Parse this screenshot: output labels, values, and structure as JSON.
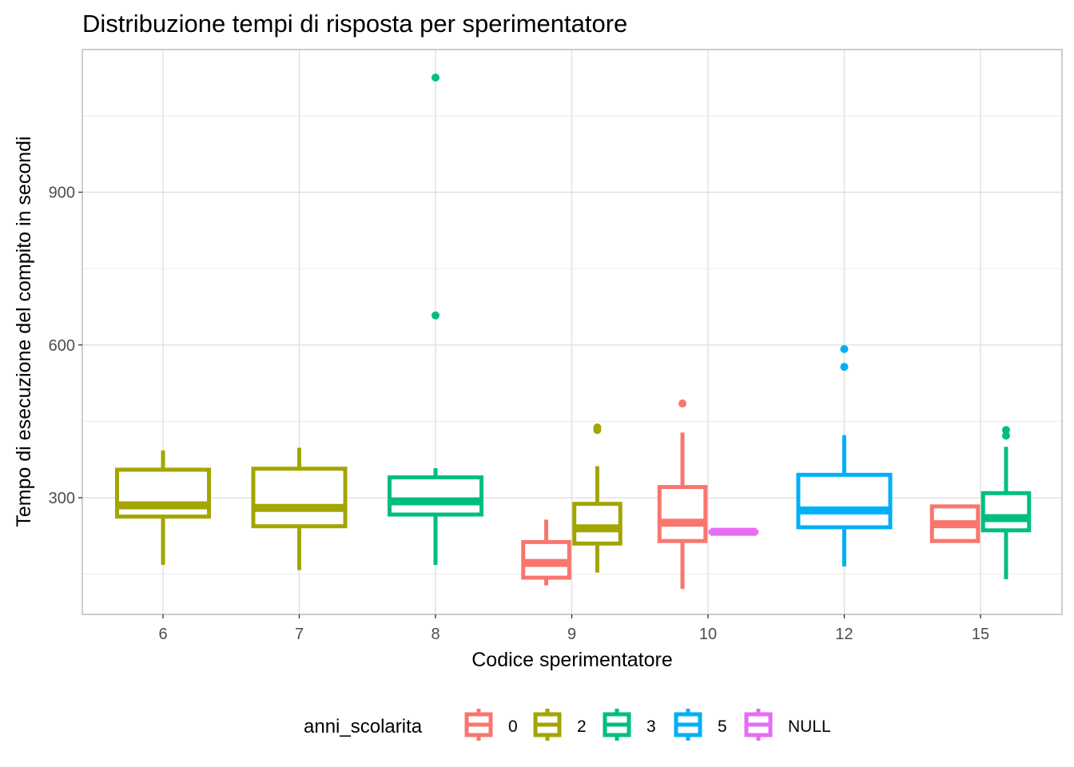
{
  "chart_data": {
    "type": "boxplot",
    "title": "Distribuzione tempi di risposta per sperimentatore",
    "xlabel": "Codice sperimentatore",
    "ylabel": "Tempo di esecuzione del compito in secondi",
    "categories": [
      "6",
      "7",
      "8",
      "9",
      "10",
      "12",
      "15"
    ],
    "yticks": [
      300,
      600,
      900
    ],
    "ylim": [
      75,
      1175
    ],
    "grid": true,
    "legend": {
      "title": "anni_scolarita",
      "position": "bottom",
      "entries": [
        {
          "label": "0",
          "color": "#F8766D"
        },
        {
          "label": "2",
          "color": "#A3A500"
        },
        {
          "label": "3",
          "color": "#00BF7D"
        },
        {
          "label": "5",
          "color": "#00B0F6"
        },
        {
          "label": "NULL",
          "color": "#E76BF3"
        }
      ]
    },
    "series": [
      {
        "name": "0",
        "boxes": [
          {
            "category": "9",
            "min": 128,
            "q1": 143,
            "median": 172,
            "q3": 213,
            "max": 257,
            "outliers": []
          },
          {
            "category": "10",
            "min": 121,
            "q1": 215,
            "median": 251,
            "q3": 321,
            "max": 428,
            "outliers": [
              485
            ]
          },
          {
            "category": "15",
            "min": 215,
            "q1": 215,
            "median": 248,
            "q3": 283,
            "max": 283,
            "outliers": []
          }
        ]
      },
      {
        "name": "2",
        "boxes": [
          {
            "category": "6",
            "min": 168,
            "q1": 263,
            "median": 285,
            "q3": 355,
            "max": 393,
            "outliers": []
          },
          {
            "category": "7",
            "min": 158,
            "q1": 244,
            "median": 280,
            "q3": 357,
            "max": 398,
            "outliers": []
          },
          {
            "category": "9",
            "min": 153,
            "q1": 210,
            "median": 240,
            "q3": 288,
            "max": 362,
            "outliers": [
              433,
              438
            ]
          }
        ]
      },
      {
        "name": "3",
        "boxes": [
          {
            "category": "8",
            "min": 168,
            "q1": 267,
            "median": 293,
            "q3": 340,
            "max": 358,
            "outliers": [
              658,
              1125
            ]
          },
          {
            "category": "15",
            "min": 140,
            "q1": 236,
            "median": 260,
            "q3": 309,
            "max": 400,
            "outliers": [
              422,
              433
            ]
          }
        ]
      },
      {
        "name": "5",
        "boxes": [
          {
            "category": "12",
            "min": 165,
            "q1": 242,
            "median": 275,
            "q3": 345,
            "max": 423,
            "outliers": [
              557,
              592
            ]
          }
        ]
      },
      {
        "name": "NULL",
        "boxes": [
          {
            "category": "10",
            "min": 233,
            "q1": 233,
            "median": 233,
            "q3": 233,
            "max": 233,
            "outliers": []
          }
        ]
      }
    ]
  }
}
